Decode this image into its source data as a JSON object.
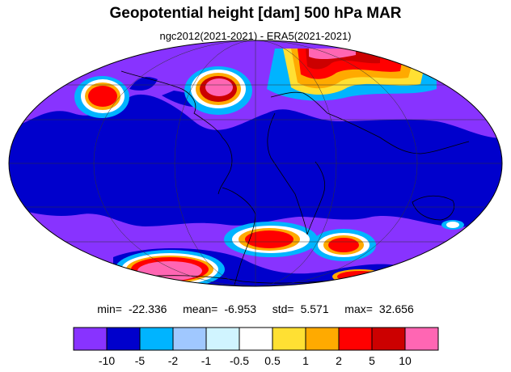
{
  "title": "Geopotential height [dam] 500 hPa MAR",
  "subtitle": "ngc2012(2021-2021) - ERA5(2021-2021)",
  "stats": {
    "min_label": "min=",
    "min": "-22.336",
    "mean_label": "mean=",
    "mean": "-6.953",
    "std_label": "std=",
    "std": "5.571",
    "max_label": "max=",
    "max": "32.656"
  },
  "colorbar": {
    "colors": [
      "#8833ff",
      "#0000cc",
      "#00b4ff",
      "#a0c8ff",
      "#d0f4ff",
      "#ffffff",
      "#ffe033",
      "#ffaa00",
      "#ff0000",
      "#cc0000",
      "#ff66b3"
    ],
    "labels": [
      "-10",
      "-5",
      "-2",
      "-1",
      "-0.5",
      "0.5",
      "1",
      "2",
      "5",
      "10"
    ]
  },
  "colors": {
    "background": "#ffffff",
    "map_base": "#0000cc",
    "coastline": "#000000",
    "grid": "#333333"
  }
}
